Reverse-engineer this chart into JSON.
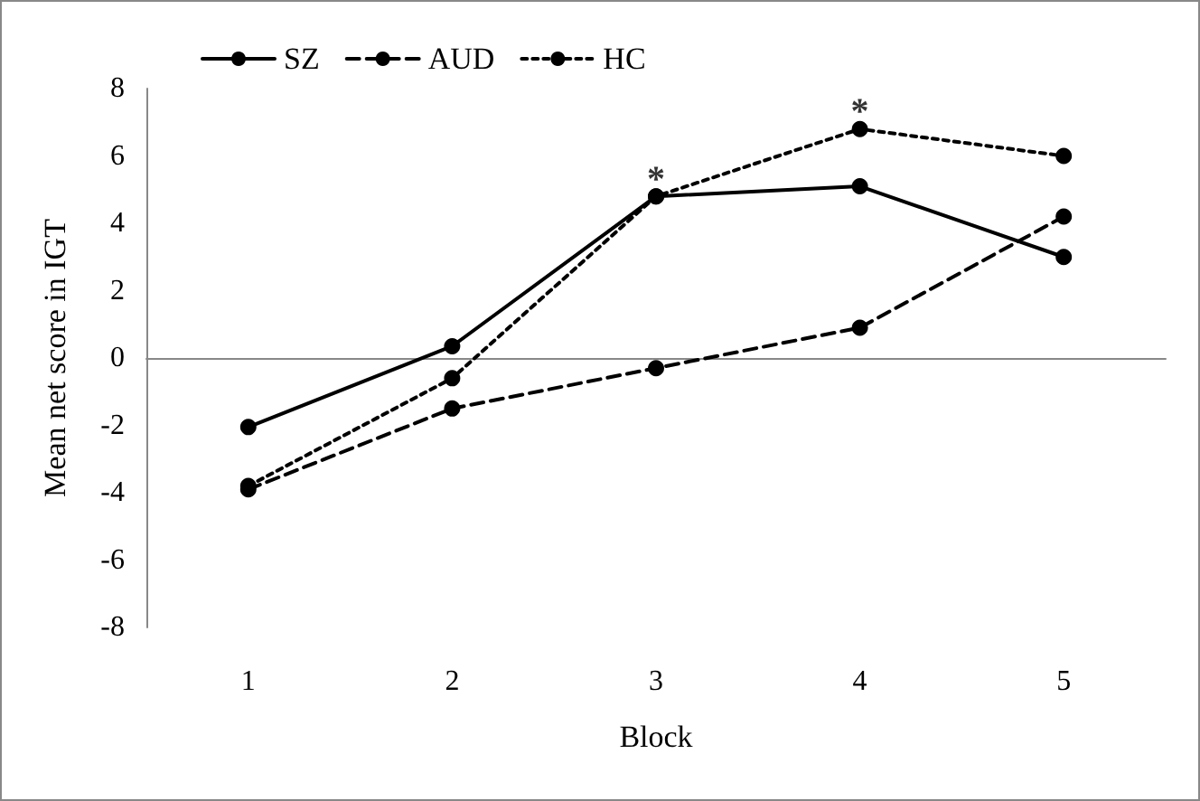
{
  "chart_data": {
    "type": "line",
    "xlabel": "Block",
    "ylabel": "Mean net score in IGT",
    "categories": [
      "1",
      "2",
      "3",
      "4",
      "5"
    ],
    "series": [
      {
        "name": "SZ",
        "color": "#000000",
        "line_style": "solid",
        "values": [
          -2.05,
          0.35,
          4.8,
          5.1,
          3.0
        ]
      },
      {
        "name": "AUD",
        "color": "#000000",
        "line_style": "dashed",
        "values": [
          -3.9,
          -1.5,
          -0.3,
          0.9,
          4.2
        ]
      },
      {
        "name": "HC",
        "color": "#000000",
        "line_style": "dotted",
        "values": [
          -3.8,
          -0.6,
          4.8,
          6.8,
          6.0
        ]
      }
    ],
    "ylim": [
      -8,
      8
    ],
    "yticks": [
      -8,
      -6,
      -4,
      -2,
      0,
      2,
      4,
      6,
      8
    ],
    "legend": "top left",
    "marker": "circle",
    "annotations": [
      {
        "text": "*",
        "x": "3",
        "y": 5.3
      },
      {
        "text": "*",
        "x": "4",
        "y": 7.3
      }
    ]
  }
}
